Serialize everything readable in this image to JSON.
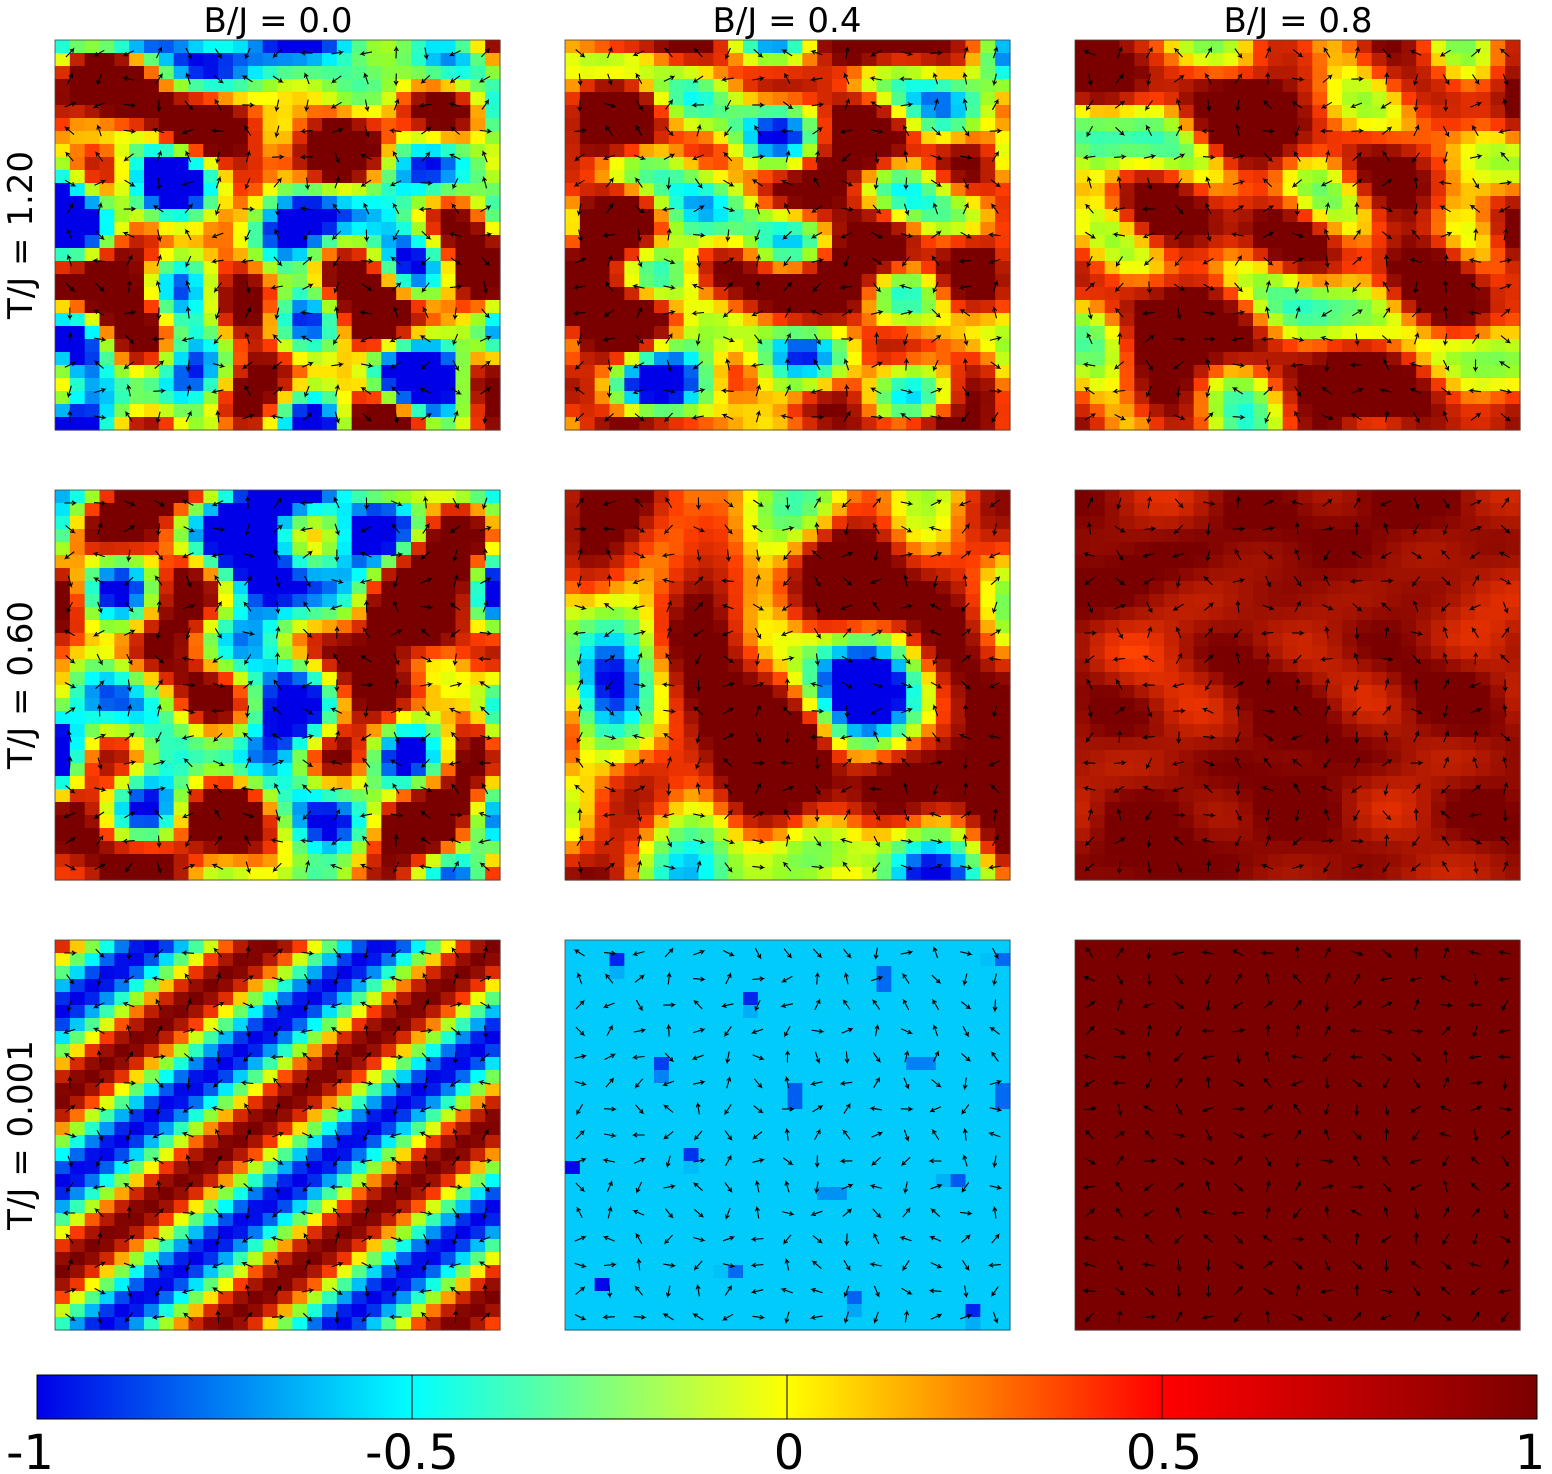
{
  "chart_data": {
    "type": "heatmap",
    "layout": "3x3 grid of spin-configuration maps with in-plane spin arrows",
    "column_labels": [
      "B/J = 0.0",
      "B/J = 0.4",
      "B/J = 0.8"
    ],
    "row_labels": [
      "T/J = 1.20",
      "T/J = 0.60",
      "T/J = 0.001"
    ],
    "color_quantity_range": [
      -1,
      1
    ],
    "colormap": "jet",
    "colorbar": {
      "placement": "bottom",
      "ticks": [
        "-1",
        "-0.5",
        "0",
        "0.5",
        "1"
      ],
      "tick_values": [
        -1,
        -0.5,
        0,
        0.5,
        1
      ],
      "gradient": [
        "#0000e8",
        "#00ffff",
        "#ffff00",
        "#ff0000",
        "#7a0000"
      ]
    },
    "panels": [
      {
        "row": 0,
        "col": 0,
        "pattern": "disordered",
        "mean": 0.15,
        "spread": 1.15
      },
      {
        "row": 0,
        "col": 1,
        "pattern": "disordered",
        "mean": 0.45,
        "spread": 0.9
      },
      {
        "row": 0,
        "col": 2,
        "pattern": "disordered",
        "mean": 0.65,
        "spread": 0.6
      },
      {
        "row": 1,
        "col": 0,
        "pattern": "disordered",
        "mean": 0.1,
        "spread": 1.25
      },
      {
        "row": 1,
        "col": 1,
        "pattern": "skyrmion-liquid",
        "mean": 0.55,
        "spread": 0.9
      },
      {
        "row": 1,
        "col": 2,
        "pattern": "near-ferromagnetic",
        "mean": 0.9,
        "spread": 0.18
      },
      {
        "row": 2,
        "col": 0,
        "pattern": "spiral-stripes",
        "direction": "diagonal"
      },
      {
        "row": 2,
        "col": 1,
        "pattern": "skyrmion-lattice"
      },
      {
        "row": 2,
        "col": 2,
        "pattern": "ferromagnetic",
        "value": 1.0
      }
    ],
    "colors": {
      "arrow": "#000000"
    }
  }
}
